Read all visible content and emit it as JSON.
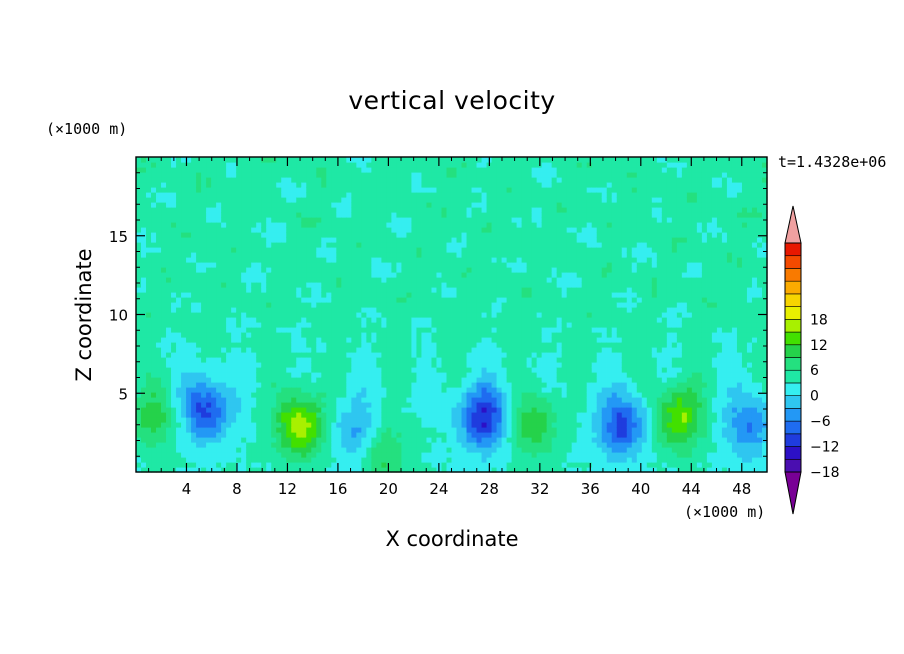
{
  "chart_data": {
    "type": "heatmap",
    "title": "vertical velocity",
    "xlabel": "X coordinate",
    "ylabel": "Z coordinate",
    "x_unit": "(×1000 m)",
    "y_unit": "(×1000 m)",
    "time_label": "t=1.4328e+06",
    "xlim": [
      0,
      50
    ],
    "ylim": [
      0,
      20
    ],
    "x_ticks": [
      4,
      8,
      12,
      16,
      20,
      24,
      28,
      32,
      36,
      40,
      44,
      48
    ],
    "y_ticks": [
      5,
      10,
      15
    ],
    "colorbar": {
      "min": -21,
      "max": 21,
      "step": 3,
      "tick_labels": [
        -18,
        -12,
        -6,
        0,
        6,
        12,
        18
      ],
      "extend": "both",
      "colors": [
        "#780095",
        "#4a0eb0",
        "#2c10c6",
        "#1f3cde",
        "#1f6cf0",
        "#2398f5",
        "#2fc6f0",
        "#35eef0",
        "#1fe8a5",
        "#24e07f",
        "#25d24a",
        "#42e000",
        "#a8f000",
        "#e8f000",
        "#f7d400",
        "#fbab00",
        "#f97a00",
        "#f44a00",
        "#e81800",
        "#f0a0a0"
      ]
    },
    "features": [
      {
        "x": 13.0,
        "z": 3.0,
        "value": 14
      },
      {
        "x": 43.0,
        "z": 3.5,
        "value": 12
      },
      {
        "x": 31.5,
        "z": 3.0,
        "value": 8
      },
      {
        "x": 1.5,
        "z": 3.5,
        "value": 7
      },
      {
        "x": 19.5,
        "z": 1.2,
        "value": 7
      },
      {
        "x": 5.5,
        "z": 4.0,
        "value": -13
      },
      {
        "x": 27.5,
        "z": 3.5,
        "value": -15
      },
      {
        "x": 38.5,
        "z": 3.0,
        "value": -13
      },
      {
        "x": 17.5,
        "z": 2.5,
        "value": -7
      },
      {
        "x": 48.5,
        "z": 3.0,
        "value": -9
      }
    ]
  }
}
